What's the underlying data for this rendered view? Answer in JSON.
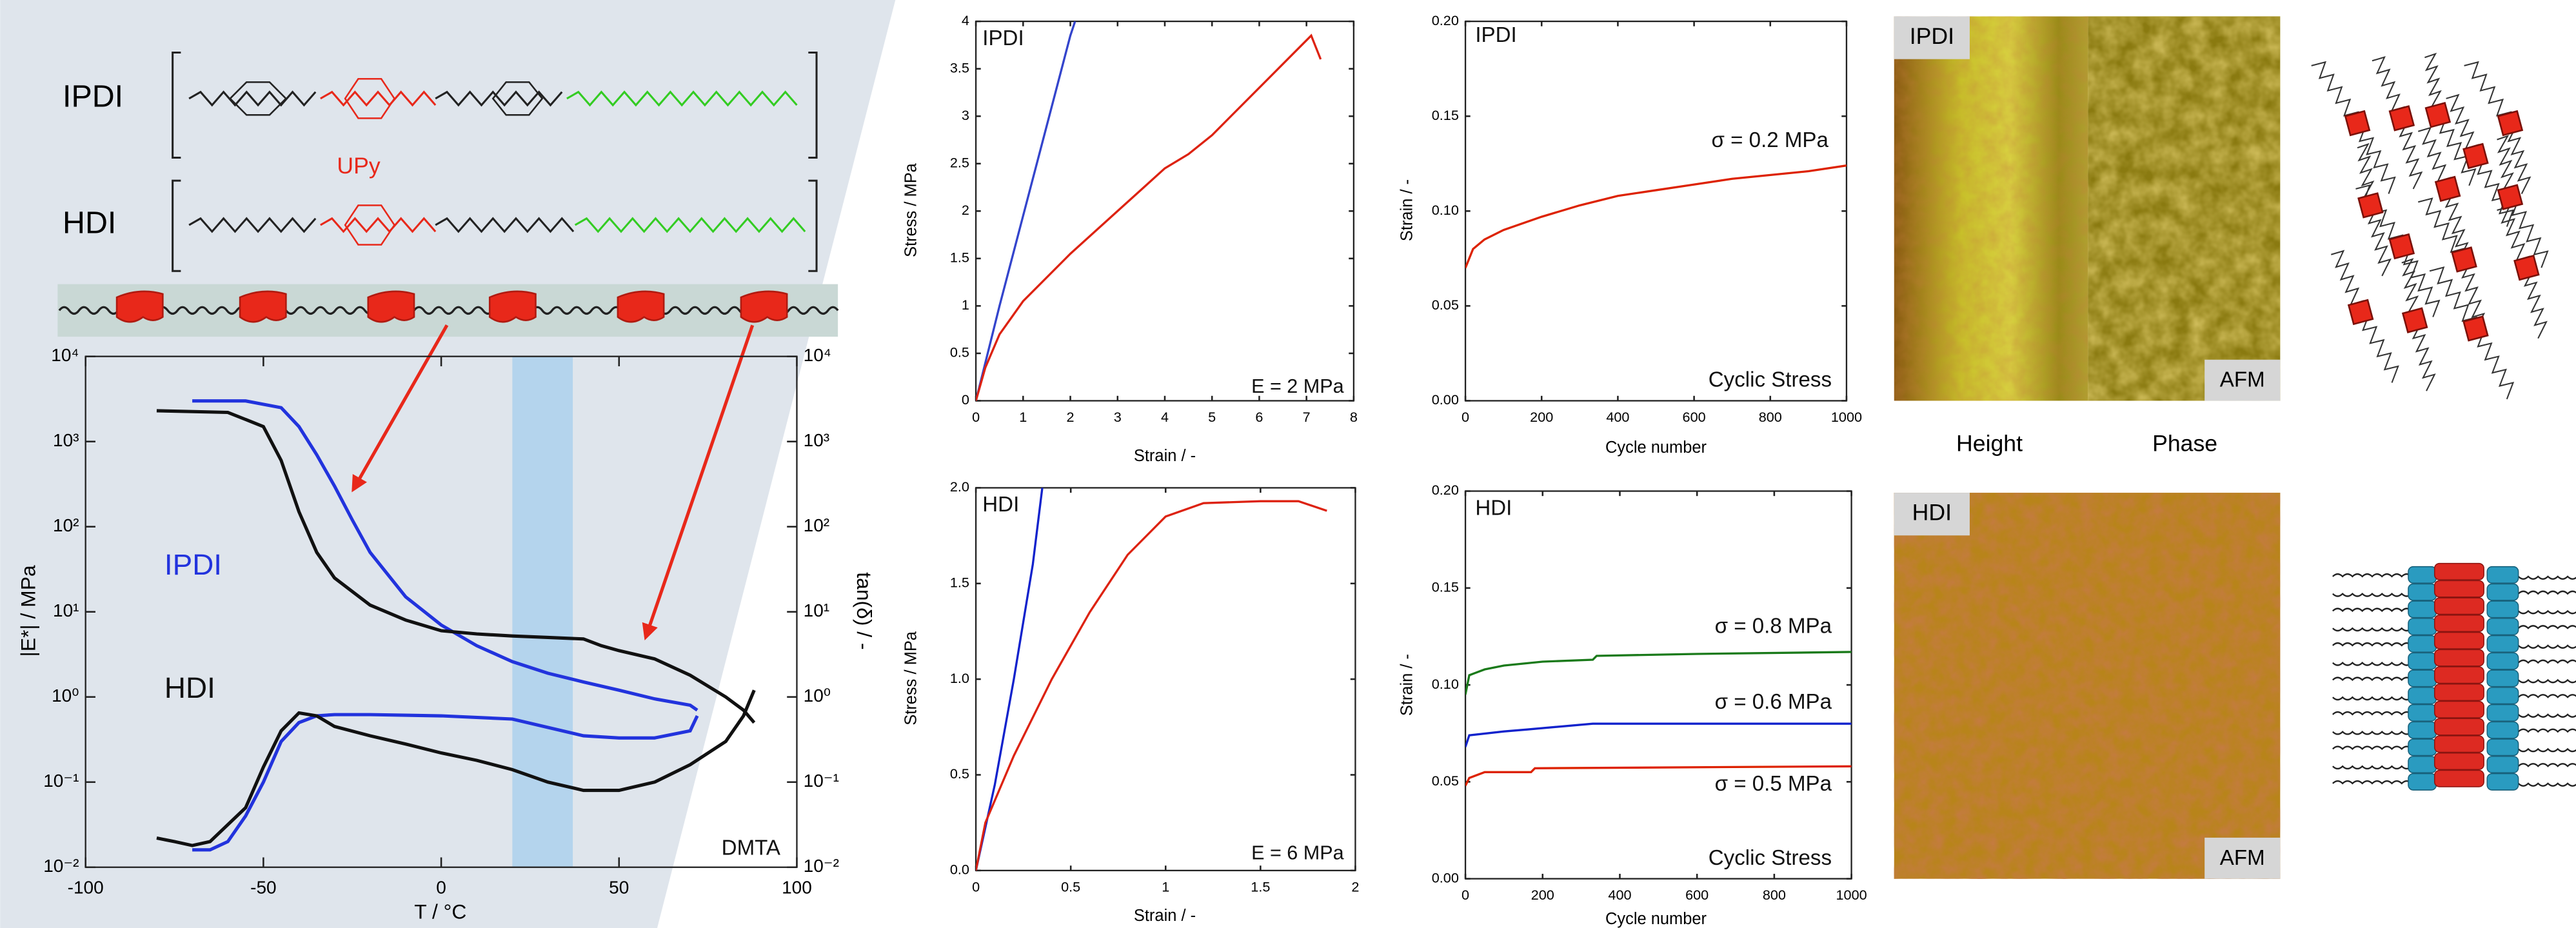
{
  "chart_data": [
    {
      "type": "line",
      "yscale": "log",
      "xlabel": "T / °C",
      "ylabel": "|E*| / MPa",
      "y2label": "tan(δ) / -",
      "xlim": [
        -100,
        100
      ],
      "xticks": [
        -100,
        -50,
        0,
        50,
        100
      ],
      "ylim": [
        0.01,
        10000
      ],
      "yticks": [
        {
          "value": 0.01,
          "label": "10⁻²"
        },
        {
          "value": 0.1,
          "label": "10⁻¹"
        },
        {
          "value": 1,
          "label": "10⁰"
        },
        {
          "value": 10,
          "label": "10¹"
        },
        {
          "value": 100,
          "label": "10²"
        },
        {
          "value": 1000,
          "label": "10³"
        },
        {
          "value": 10000,
          "label": "10⁴"
        }
      ],
      "y2lim": [
        0.01,
        10000
      ],
      "y2ticks": [
        {
          "value": 0.01,
          "label": "10⁻²"
        },
        {
          "value": 0.1,
          "label": "10⁻¹"
        },
        {
          "value": 1,
          "label": "10⁰"
        },
        {
          "value": 10,
          "label": "10¹"
        },
        {
          "value": 100,
          "label": "10²"
        },
        {
          "value": 1000,
          "label": "10³"
        },
        {
          "value": 10000,
          "label": "10⁴"
        }
      ],
      "highlight": [
        20,
        37
      ],
      "highlight_color": "#a9d0ee",
      "series": [
        {
          "color": "#2233dd",
          "x": [
            -70,
            -55,
            -45,
            -40,
            -35,
            -30,
            -25,
            -20,
            -10,
            0,
            10,
            20,
            30,
            40,
            50,
            60,
            70,
            72
          ],
          "values": [
            3000,
            3000,
            2500,
            1500,
            700,
            300,
            120,
            50,
            15,
            7,
            4,
            2.6,
            1.9,
            1.5,
            1.2,
            0.95,
            0.8,
            0.7
          ]
        },
        {
          "color": "#111111",
          "x": [
            -80,
            -60,
            -50,
            -45,
            -40,
            -35,
            -30,
            -20,
            -10,
            0,
            10,
            20,
            30,
            40,
            45,
            50,
            60,
            70,
            80,
            85,
            88
          ],
          "values": [
            2300,
            2200,
            1500,
            600,
            150,
            50,
            25,
            12,
            8,
            6,
            5.5,
            5.2,
            5,
            4.8,
            4,
            3.5,
            2.8,
            1.8,
            1,
            0.7,
            0.5
          ]
        },
        {
          "color": "#2233dd",
          "axis": "y2",
          "x": [
            -70,
            -65,
            -60,
            -55,
            -50,
            -45,
            -40,
            -35,
            -30,
            -20,
            0,
            20,
            40,
            50,
            60,
            70,
            72
          ],
          "values": [
            0.016,
            0.016,
            0.02,
            0.04,
            0.1,
            0.3,
            0.5,
            0.6,
            0.62,
            0.62,
            0.6,
            0.55,
            0.35,
            0.33,
            0.33,
            0.4,
            0.6
          ]
        },
        {
          "color": "#111111",
          "axis": "y2",
          "x": [
            -80,
            -75,
            -70,
            -65,
            -55,
            -50,
            -45,
            -40,
            -35,
            -30,
            -20,
            -10,
            0,
            10,
            20,
            30,
            40,
            50,
            60,
            70,
            80,
            85,
            88
          ],
          "values": [
            0.022,
            0.02,
            0.018,
            0.02,
            0.05,
            0.15,
            0.4,
            0.65,
            0.6,
            0.45,
            0.35,
            0.28,
            0.22,
            0.18,
            0.14,
            0.1,
            0.08,
            0.08,
            0.1,
            0.16,
            0.3,
            0.6,
            1.2
          ]
        }
      ],
      "annotations": [
        {
          "text": "IPDI",
          "color": "#2233dd"
        },
        {
          "text": "HDI",
          "color": "#111111"
        },
        {
          "text": "DMTA",
          "color": "#111111"
        }
      ]
    },
    {
      "type": "line",
      "xlabel": "Strain / -",
      "ylabel": "Stress / MPa",
      "xlim": [
        0,
        8
      ],
      "xticks": [
        0,
        1,
        2,
        3,
        4,
        5,
        6,
        7,
        8
      ],
      "ylim": [
        0,
        4
      ],
      "yticks": [
        0,
        0.5,
        1,
        1.5,
        2,
        2.5,
        3,
        3.5,
        4
      ],
      "series": [
        {
          "color": "#3344cc",
          "x": [
            0,
            0.5,
            1,
            1.5,
            2,
            2.1
          ],
          "values": [
            0,
            1,
            1.95,
            2.9,
            3.85,
            4
          ]
        },
        {
          "color": "#dd2211",
          "x": [
            0,
            0.2,
            0.5,
            1,
            2,
            3,
            4,
            4.5,
            5,
            6,
            6.8,
            7.1,
            7.3
          ],
          "values": [
            0,
            0.35,
            0.7,
            1.05,
            1.55,
            2,
            2.45,
            2.6,
            2.8,
            3.3,
            3.7,
            3.85,
            3.6
          ]
        }
      ],
      "annotations": [
        {
          "text": "IPDI",
          "color": "#111111"
        },
        {
          "text": "E = 2 MPa",
          "color": "#111111"
        }
      ]
    },
    {
      "type": "line",
      "xlabel": "Strain / -",
      "ylabel": "Stress / MPa",
      "xlim": [
        0,
        2
      ],
      "xticks": [
        0,
        0.5,
        1,
        1.5,
        2
      ],
      "ylim": [
        0,
        2
      ],
      "yticks": [
        {
          "value": 0,
          "label": "0.0"
        },
        0.5,
        {
          "value": 1,
          "label": "1.0"
        },
        1.5,
        {
          "value": 2,
          "label": "2.0"
        }
      ],
      "series": [
        {
          "color": "#1122cc",
          "x": [
            0,
            0.1,
            0.2,
            0.3,
            0.35
          ],
          "values": [
            0,
            0.45,
            1,
            1.6,
            2
          ]
        },
        {
          "color": "#dd2211",
          "x": [
            0,
            0.05,
            0.2,
            0.4,
            0.6,
            0.8,
            1,
            1.2,
            1.5,
            1.7,
            1.85
          ],
          "values": [
            0,
            0.25,
            0.6,
            1,
            1.35,
            1.65,
            1.85,
            1.92,
            1.93,
            1.93,
            1.88
          ]
        }
      ],
      "annotations": [
        {
          "text": "HDI",
          "color": "#111111"
        },
        {
          "text": "E = 6 MPa",
          "color": "#111111"
        }
      ]
    },
    {
      "type": "line",
      "xlabel": "Cycle number",
      "ylabel": "Strain / -",
      "xlim": [
        0,
        1000
      ],
      "xticks": [
        0,
        200,
        400,
        600,
        800,
        1000
      ],
      "ylim": [
        0,
        0.2
      ],
      "yticks": [
        {
          "value": 0,
          "label": "0.00"
        },
        0.05,
        {
          "value": 0.1,
          "label": "0.10"
        },
        0.15,
        {
          "value": 0.2,
          "label": "0.20"
        }
      ],
      "series": [
        {
          "color": "#dd2200",
          "x": [
            0,
            20,
            50,
            100,
            200,
            300,
            400,
            500,
            600,
            700,
            800,
            900,
            1000
          ],
          "values": [
            0.07,
            0.08,
            0.085,
            0.09,
            0.097,
            0.103,
            0.108,
            0.111,
            0.114,
            0.117,
            0.119,
            0.121,
            0.124
          ]
        }
      ],
      "annotations": [
        {
          "text": "IPDI",
          "color": "#111111"
        },
        {
          "text": "σ = 0.2 MPa",
          "color": "#111111"
        },
        {
          "text": "Cyclic Stress",
          "color": "#111111"
        }
      ]
    },
    {
      "type": "line",
      "xlabel": "Cycle number",
      "ylabel": "Strain / -",
      "xlim": [
        0,
        1000
      ],
      "xticks": [
        0,
        200,
        400,
        600,
        800,
        1000
      ],
      "ylim": [
        0,
        0.2
      ],
      "yticks": [
        {
          "value": 0,
          "label": "0.00"
        },
        0.05,
        {
          "value": 0.1,
          "label": "0.10"
        },
        0.15,
        {
          "value": 0.2,
          "label": "0.20"
        }
      ],
      "series": [
        {
          "color": "#1a7a1a",
          "x": [
            0,
            10,
            50,
            100,
            200,
            330,
            340,
            600,
            1000
          ],
          "values": [
            0.095,
            0.105,
            0.108,
            0.11,
            0.112,
            0.113,
            0.115,
            0.116,
            0.117
          ]
        },
        {
          "color": "#1122cc",
          "x": [
            0,
            10,
            100,
            160,
            330,
            1000
          ],
          "values": [
            0.068,
            0.074,
            0.076,
            0.077,
            0.08,
            0.08
          ]
        },
        {
          "color": "#dd2200",
          "x": [
            0,
            10,
            50,
            170,
            180,
            1000
          ],
          "values": [
            0.048,
            0.052,
            0.055,
            0.055,
            0.057,
            0.058
          ]
        }
      ],
      "annotations": [
        {
          "text": "HDI",
          "color": "#111111"
        },
        {
          "text": "σ = 0.8 MPa",
          "color": "#111111"
        },
        {
          "text": "σ = 0.6 MPa",
          "color": "#111111"
        },
        {
          "text": "σ = 0.5 MPa",
          "color": "#111111"
        },
        {
          "text": "Cyclic Stress",
          "color": "#111111"
        }
      ]
    }
  ],
  "structure": {
    "top": "IPDI",
    "bottom": "HDI",
    "unit": "UPy"
  },
  "afm": {
    "top_tag": "IPDI",
    "bottom_tag": "HDI",
    "mode": "AFM",
    "captions": [
      "Height",
      "Phase"
    ]
  }
}
